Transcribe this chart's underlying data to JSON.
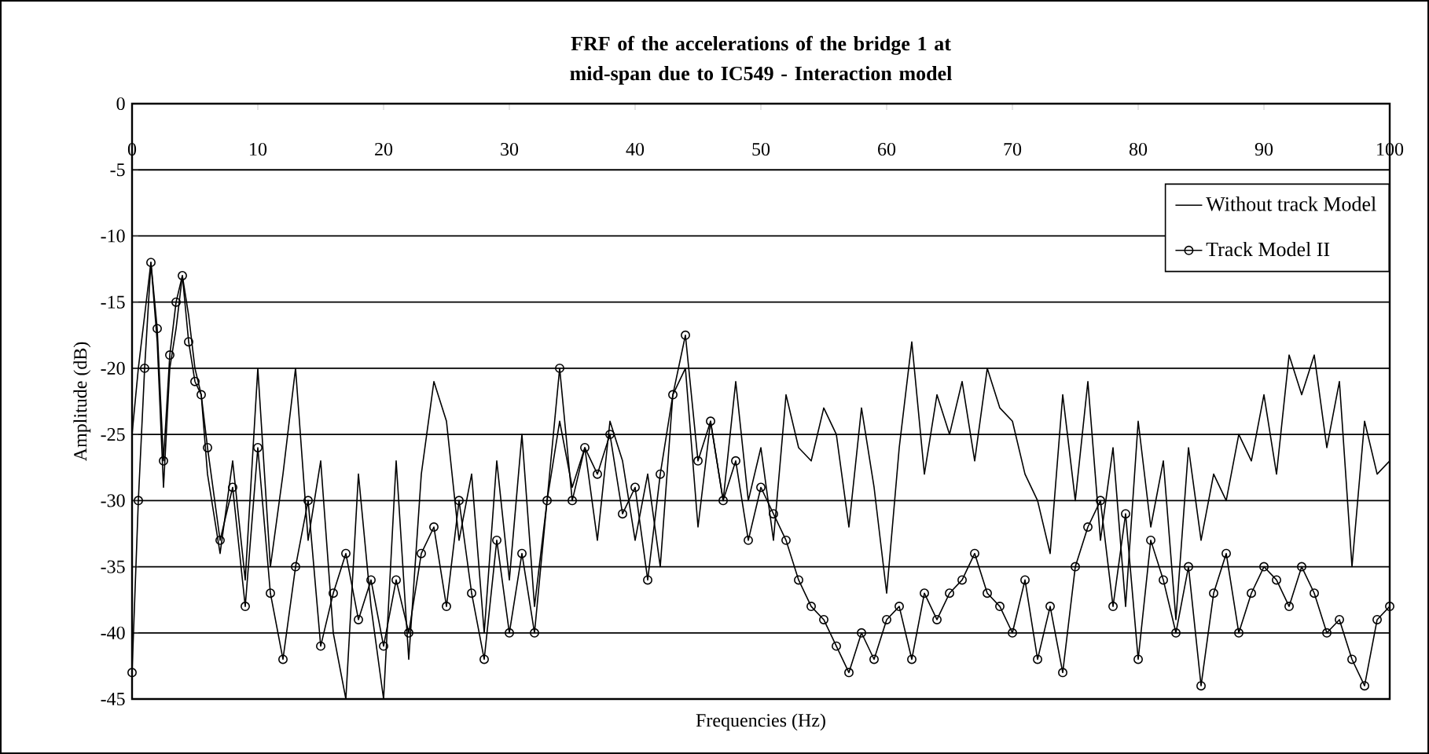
{
  "chart_data": {
    "type": "line",
    "title": "FRF of the accelerations of the bridge 1 at mid-span due to IC549 - Interaction model",
    "xlabel": "Frequencies (Hz)",
    "ylabel": "Amplitude (dB)",
    "x": [
      0,
      0.5,
      1,
      1.5,
      2,
      2.5,
      3,
      3.5,
      4,
      4.5,
      5,
      5.5,
      6,
      7,
      8,
      9,
      10,
      11,
      12,
      13,
      14,
      15,
      16,
      17,
      18,
      19,
      20,
      21,
      22,
      23,
      24,
      25,
      26,
      27,
      28,
      29,
      30,
      31,
      32,
      33,
      34,
      35,
      36,
      37,
      38,
      39,
      40,
      41,
      42,
      43,
      44,
      45,
      46,
      47,
      48,
      49,
      50,
      51,
      52,
      53,
      54,
      55,
      56,
      57,
      58,
      59,
      60,
      61,
      62,
      63,
      64,
      65,
      66,
      67,
      68,
      69,
      70,
      71,
      72,
      73,
      74,
      75,
      76,
      77,
      78,
      79,
      80,
      81,
      82,
      83,
      84,
      85,
      86,
      87,
      88,
      89,
      90,
      91,
      92,
      93,
      94,
      95,
      96,
      97,
      98,
      99,
      100
    ],
    "series": [
      {
        "name": "Without track Model",
        "color": "#000000",
        "marker": "none",
        "values": [
          -25,
          -20,
          -16,
          -12,
          -18,
          -29,
          -20,
          -17,
          -13,
          -16,
          -20,
          -22,
          -28,
          -34,
          -27,
          -36,
          -20,
          -35,
          -28,
          -20,
          -33,
          -27,
          -40,
          -45,
          -28,
          -38,
          -45,
          -27,
          -42,
          -28,
          -21,
          -24,
          -33,
          -28,
          -40,
          -27,
          -36,
          -25,
          -38,
          -30,
          -24,
          -29,
          -26,
          -33,
          -24,
          -27,
          -33,
          -28,
          -35,
          -22,
          -20,
          -32,
          -24,
          -30,
          -21,
          -30,
          -26,
          -33,
          -22,
          -26,
          -27,
          -23,
          -25,
          -32,
          -23,
          -29,
          -37,
          -26,
          -18,
          -28,
          -22,
          -25,
          -21,
          -27,
          -20,
          -23,
          -24,
          -28,
          -30,
          -34,
          -22,
          -30,
          -21,
          -33,
          -26,
          -38,
          -24,
          -32,
          -27,
          -39,
          -26,
          -33,
          -28,
          -30,
          -25,
          -27,
          -22,
          -28,
          -19,
          -22,
          -19,
          -26,
          -21,
          -35,
          -24,
          -28,
          -27
        ]
      },
      {
        "name": "Track Model II",
        "color": "#000000",
        "marker": "circle",
        "values": [
          -43,
          -30,
          -20,
          -12,
          -17,
          -27,
          -19,
          -15,
          -13,
          -18,
          -21,
          -22,
          -26,
          -33,
          -29,
          -38,
          -26,
          -37,
          -42,
          -35,
          -30,
          -41,
          -37,
          -34,
          -39,
          -36,
          -41,
          -36,
          -40,
          -34,
          -32,
          -38,
          -30,
          -37,
          -42,
          -33,
          -40,
          -34,
          -40,
          -30,
          -20,
          -30,
          -26,
          -28,
          -25,
          -31,
          -29,
          -36,
          -28,
          -22,
          -17.5,
          -27,
          -24,
          -30,
          -27,
          -33,
          -29,
          -31,
          -33,
          -36,
          -38,
          -39,
          -41,
          -43,
          -40,
          -42,
          -39,
          -38,
          -42,
          -37,
          -39,
          -37,
          -36,
          -34,
          -37,
          -38,
          -40,
          -36,
          -42,
          -38,
          -43,
          -35,
          -32,
          -30,
          -38,
          -31,
          -42,
          -33,
          -36,
          -40,
          -35,
          -44,
          -37,
          -34,
          -40,
          -37,
          -35,
          -36,
          -38,
          -35,
          -37,
          -40,
          -39,
          -42,
          -44,
          -39,
          -38
        ]
      }
    ],
    "xlim": [
      0,
      100
    ],
    "ylim": [
      -45,
      0
    ],
    "xticks": [
      0,
      10,
      20,
      30,
      40,
      50,
      60,
      70,
      80,
      90,
      100
    ],
    "yticks": [
      -45,
      -40,
      -35,
      -30,
      -25,
      -20,
      -15,
      -10,
      -5,
      0
    ],
    "grid": "y",
    "legend": "top right"
  }
}
